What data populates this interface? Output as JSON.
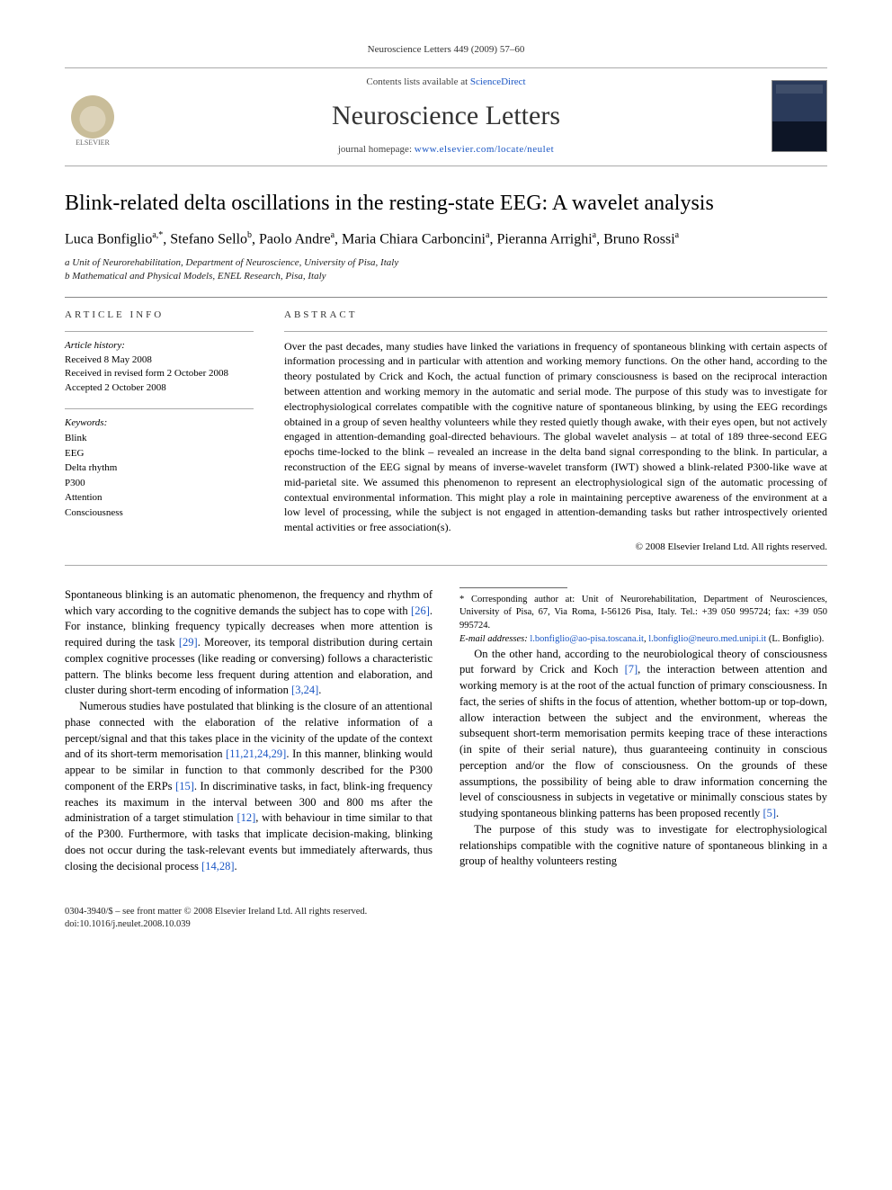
{
  "running_head": "Neuroscience Letters 449 (2009) 57–60",
  "header": {
    "contents_prefix": "Contents lists available at ",
    "contents_link": "ScienceDirect",
    "journal": "Neuroscience Letters",
    "homepage_prefix": "journal homepage: ",
    "homepage_link": "www.elsevier.com/locate/neulet",
    "publisher": "ELSEVIER"
  },
  "title": "Blink-related delta oscillations in the resting-state EEG: A wavelet analysis",
  "authors_html": "Luca Bonfiglio<sup>a,*</sup>, Stefano Sello<sup>b</sup>, Paolo Andre<sup>a</sup>, Maria Chiara Carboncini<sup>a</sup>, Pieranna Arrighi<sup>a</sup>, Bruno Rossi<sup>a</sup>",
  "affiliations": [
    "a Unit of Neurorehabilitation, Department of Neuroscience, University of Pisa, Italy",
    "b Mathematical and Physical Models, ENEL Research, Pisa, Italy"
  ],
  "info": {
    "head_info": "article info",
    "head_abs": "abstract",
    "history_label": "Article history:",
    "history": [
      "Received 8 May 2008",
      "Received in revised form 2 October 2008",
      "Accepted 2 October 2008"
    ],
    "keywords_label": "Keywords:",
    "keywords": [
      "Blink",
      "EEG",
      "Delta rhythm",
      "P300",
      "Attention",
      "Consciousness"
    ]
  },
  "abstract": "Over the past decades, many studies have linked the variations in frequency of spontaneous blinking with certain aspects of information processing and in particular with attention and working memory functions. On the other hand, according to the theory postulated by Crick and Koch, the actual function of primary consciousness is based on the reciprocal interaction between attention and working memory in the automatic and serial mode. The purpose of this study was to investigate for electrophysiological correlates compatible with the cognitive nature of spontaneous blinking, by using the EEG recordings obtained in a group of seven healthy volunteers while they rested quietly though awake, with their eyes open, but not actively engaged in attention-demanding goal-directed behaviours. The global wavelet analysis – at total of 189 three-second EEG epochs time-locked to the blink – revealed an increase in the delta band signal corresponding to the blink. In particular, a reconstruction of the EEG signal by means of inverse-wavelet transform (IWT) showed a blink-related P300-like wave at mid-parietal site. We assumed this phenomenon to represent an electrophysiological sign of the automatic processing of contextual environmental information. This might play a role in maintaining perceptive awareness of the environment at a low level of processing, while the subject is not engaged in attention-demanding tasks but rather introspectively oriented mental activities or free association(s).",
  "copyright": "© 2008 Elsevier Ireland Ltd. All rights reserved.",
  "body": {
    "p1a": "Spontaneous blinking is an automatic phenomenon, the frequency and rhythm of which vary according to the cognitive demands the subject has to cope with ",
    "r26": "[26]",
    "p1b": ". For instance, blinking frequency typically decreases when more attention is required during the task ",
    "r29": "[29]",
    "p1c": ". Moreover, its temporal distribution during certain complex cognitive processes (like reading or conversing) follows a characteristic pattern. The blinks become less frequent during attention and elaboration, and cluster during short-term encoding of information ",
    "r324": "[3,24]",
    "p1d": ".",
    "p2a": "Numerous studies have postulated that blinking is the closure of an attentional phase connected with the elaboration of the relative information of a percept/signal and that this takes place in the vicinity of the update of the context and of its short-term memorisation ",
    "r11212429": "[11,21,24,29]",
    "p2b": ". In this manner, blinking would appear to be similar in function to that commonly described for the P300 component of the ERPs ",
    "r15": "[15]",
    "p2c": ". In discriminative tasks, in fact, blink-",
    "p3a": "ing frequency reaches its maximum in the interval between 300 and 800 ms after the administration of a target stimulation ",
    "r12": "[12]",
    "p3b": ", with behaviour in time similar to that of the P300. Furthermore, with tasks that implicate decision-making, blinking does not occur during the task-relevant events but immediately afterwards, thus closing the decisional process ",
    "r1428": "[14,28]",
    "p3c": ".",
    "p4a": "On the other hand, according to the neurobiological theory of consciousness put forward by Crick and Koch ",
    "r7": "[7]",
    "p4b": ", the interaction between attention and working memory is at the root of the actual function of primary consciousness. In fact, the series of shifts in the focus of attention, whether bottom-up or top-down, allow interaction between the subject and the environment, whereas the subsequent short-term memorisation permits keeping trace of these interactions (in spite of their serial nature), thus guaranteeing continuity in conscious perception and/or the flow of consciousness. On the grounds of these assumptions, the possibility of being able to draw information concerning the level of consciousness in subjects in vegetative or minimally conscious states by studying spontaneous blinking patterns has been proposed recently ",
    "r5": "[5]",
    "p4c": ".",
    "p5": "The purpose of this study was to investigate for electrophysiological relationships compatible with the cognitive nature of spontaneous blinking in a group of healthy volunteers resting"
  },
  "footnote": {
    "corr": "* Corresponding author at: Unit of Neurorehabilitation, Department of Neurosciences, University of Pisa, 67, Via Roma, I-56126 Pisa, Italy. Tel.: +39 050 995724; fax: +39 050 995724.",
    "email_label": "E-mail addresses: ",
    "email1": "l.bonfiglio@ao-pisa.toscana.it",
    "email_sep": ", ",
    "email2": "l.bonfiglio@neuro.med.unipi.it",
    "email_tail": " (L. Bonfiglio)."
  },
  "footer": {
    "issn": "0304-3940/$ – see front matter © 2008 Elsevier Ireland Ltd. All rights reserved.",
    "doi": "doi:10.1016/j.neulet.2008.10.039"
  }
}
